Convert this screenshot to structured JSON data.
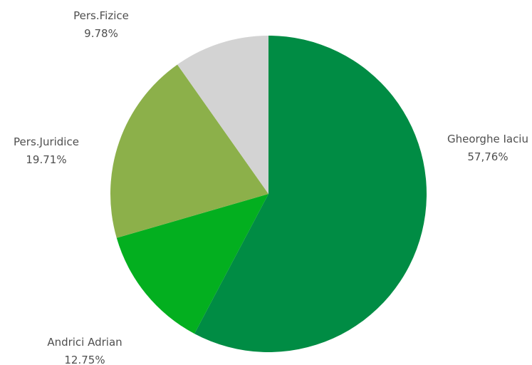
{
  "chart_data": {
    "type": "pie",
    "slices": [
      {
        "name": "Gheorghe Iaciu",
        "value": 57.76,
        "label": "57,76%",
        "color": "#008c44"
      },
      {
        "name": "Andrici Adrian",
        "value": 12.75,
        "label": "12.75%",
        "color": "#03af1f"
      },
      {
        "name": "Pers.Juridice",
        "value": 19.71,
        "label": "19.71%",
        "color": "#8cb04a"
      },
      {
        "name": "Pers.Fizice",
        "value": 9.78,
        "label": "9.78%",
        "color": "#d3d3d3"
      }
    ]
  }
}
